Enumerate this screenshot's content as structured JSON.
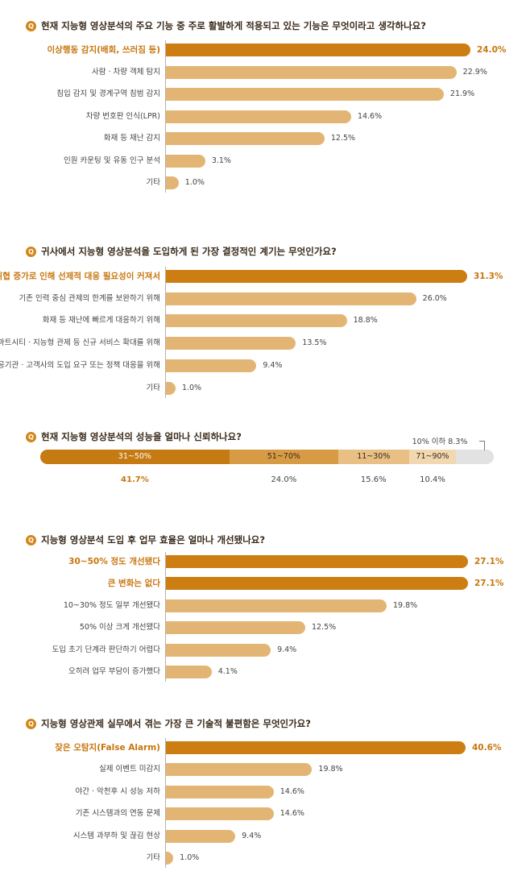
{
  "colors": {
    "accent": "#cc7e12",
    "bar": "#e3b574",
    "seg1": "#c57a12",
    "seg2": "#d89b45",
    "seg3": "#e8bf85",
    "seg4": "#f1d8b0",
    "rest": "#e2e2e2",
    "badge": "#d2861a"
  },
  "badge_letter": "Q",
  "chart_data": [
    {
      "type": "bar",
      "orientation": "horizontal",
      "title": "현재 지능형 영상분석의 주요 기능 중 주로 활발하게 적용되고 있는 기능은 무엇이라고 생각하나요?",
      "unit": "%",
      "categories": [
        "이상행동 감지(배회, 쓰러짐 등)",
        "사람 · 차량 객체 탐지",
        "침입 감지 및 경계구역 침범 감지",
        "차량 번호판 인식(LPR)",
        "화재 등 재난 감지",
        "인원 카운팅 및 유동 인구 분석",
        "기타"
      ],
      "values": [
        24.0,
        22.9,
        21.9,
        14.6,
        12.5,
        3.1,
        1.0
      ],
      "value_labels": [
        "24.0%",
        "22.9%",
        "21.9%",
        "14.6%",
        "12.5%",
        "3.1%",
        "1.0%"
      ],
      "highlight": [
        0
      ],
      "xlim": [
        0,
        24.0
      ]
    },
    {
      "type": "bar",
      "orientation": "horizontal",
      "title": "귀사에서 지능형 영상분석을 도입하게 된 가장 결정적인 계기는 무엇인가요?",
      "unit": "%",
      "categories": [
        "보안 위협 증가로 인해 선제적 대응 필요성이 커져서",
        "기존 인력 중심 관제의 한계를 보완하기 위해",
        "화재 등 재난에 빠르게 대응하기 위해",
        "스마트시티 · 지능형 관제 등 신규 서비스 확대를 위해",
        "공공기관 · 고객사의 도입 요구 또는 정책 대응을 위해",
        "기타"
      ],
      "values": [
        31.3,
        26.0,
        18.8,
        13.5,
        9.4,
        1.0
      ],
      "value_labels": [
        "31.3%",
        "26.0%",
        "18.8%",
        "13.5%",
        "9.4%",
        "1.0%"
      ],
      "highlight": [
        0
      ],
      "xlim": [
        0,
        31.3
      ]
    },
    {
      "type": "bar",
      "orientation": "stacked-horizontal",
      "title": "현재 지능형 영상분석의 성능을 얼마나 신뢰하나요?",
      "unit": "%",
      "categories": [
        "31~50%",
        "51~70%",
        "11~30%",
        "71~90%",
        "10% 이하"
      ],
      "values": [
        41.7,
        24.0,
        15.6,
        10.4,
        8.3
      ],
      "value_labels": [
        "41.7%",
        "24.0%",
        "15.6%",
        "10.4%",
        "8.3%"
      ],
      "highlight": [
        0
      ]
    },
    {
      "type": "bar",
      "orientation": "horizontal",
      "title": "지능형 영상분석 도입 후 업무 효율은 얼마나 개선됐나요?",
      "unit": "%",
      "categories": [
        "30~50% 정도 개선됐다",
        "큰 변화는 없다",
        "10~30% 정도 일부 개선됐다",
        "50% 이상 크게 개선됐다",
        "도입 초기 단계라 판단하기 어렵다",
        "오히려 업무 부담이 증가했다"
      ],
      "values": [
        27.1,
        27.1,
        19.8,
        12.5,
        9.4,
        4.1
      ],
      "value_labels": [
        "27.1%",
        "27.1%",
        "19.8%",
        "12.5%",
        "9.4%",
        "4.1%"
      ],
      "highlight": [
        0,
        1
      ],
      "xlim": [
        0,
        27.1
      ]
    },
    {
      "type": "bar",
      "orientation": "horizontal",
      "title": "지능형 영상관제 실무에서 겪는 가장 큰 기술적 불편함은 무엇인가요?",
      "unit": "%",
      "categories": [
        "잦은 오탐지(False Alarm)",
        "실제 이벤트 미감지",
        "야간 · 악천후 시 성능 저하",
        "기존 시스템과의 연동 문제",
        "시스템 과부하 및 끊김 현상",
        "기타"
      ],
      "values": [
        40.6,
        19.8,
        14.6,
        14.6,
        9.4,
        1.0
      ],
      "value_labels": [
        "40.6%",
        "19.8%",
        "14.6%",
        "14.6%",
        "9.4%",
        "1.0%"
      ],
      "highlight": [
        0
      ],
      "xlim": [
        0,
        40.6
      ]
    }
  ]
}
